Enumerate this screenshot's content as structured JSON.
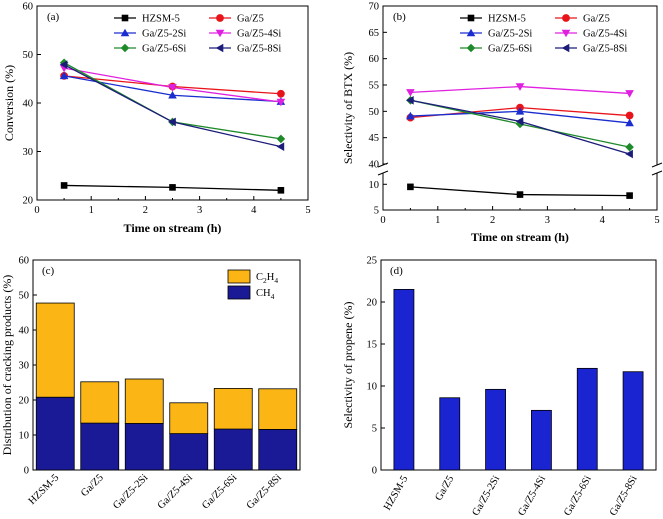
{
  "chart_data": [
    {
      "panel": "(a)",
      "type": "line",
      "xlabel": "Time on stream (h)",
      "ylabel": "Conversion (%)",
      "xlim": [
        0,
        5
      ],
      "ylim": [
        20,
        60
      ],
      "xticks": [
        "0",
        "1",
        "2",
        "3",
        "4",
        "5"
      ],
      "yticks": [
        "20",
        "30",
        "40",
        "50",
        "60"
      ],
      "x": [
        0.5,
        2.5,
        4.5
      ],
      "series": [
        {
          "name": "HZSM-5",
          "color": "#000000",
          "marker": "square",
          "values": [
            23.0,
            22.6,
            22.0
          ]
        },
        {
          "name": "Ga/Z5",
          "color": "#e8141a",
          "marker": "circle",
          "values": [
            45.6,
            43.4,
            41.9
          ]
        },
        {
          "name": "Ga/Z5-2Si",
          "color": "#1a2ecf",
          "marker": "triangle-up",
          "values": [
            45.6,
            41.6,
            40.3
          ]
        },
        {
          "name": "Ga/Z5-4Si",
          "color": "#e020e0",
          "marker": "triangle-down",
          "values": [
            47.2,
            43.2,
            40.2
          ]
        },
        {
          "name": "Ga/Z5-6Si",
          "color": "#1e8a2a",
          "marker": "diamond",
          "values": [
            48.3,
            36.1,
            32.6
          ]
        },
        {
          "name": "Ga/Z5-8Si",
          "color": "#1c1c7a",
          "marker": "triangle-left",
          "values": [
            47.9,
            36.1,
            31.0
          ]
        }
      ]
    },
    {
      "panel": "(b)",
      "type": "line",
      "xlabel": "Time on stream (h)",
      "ylabel": "Selectivity of BTX (%)",
      "xlim": [
        0,
        5
      ],
      "axis_break": "between 10 and 40",
      "ylim_lower": [
        5,
        12
      ],
      "ylim_upper": [
        40,
        70
      ],
      "xticks": [
        "0",
        "1",
        "2",
        "3",
        "4",
        "5"
      ],
      "yticks": [
        "5",
        "10",
        "40",
        "45",
        "50",
        "55",
        "60",
        "65",
        "70"
      ],
      "x": [
        0.5,
        2.5,
        4.5
      ],
      "series": [
        {
          "name": "HZSM-5",
          "color": "#000000",
          "marker": "square",
          "values": [
            9.5,
            8.0,
            7.8
          ]
        },
        {
          "name": "Ga/Z5",
          "color": "#e8141a",
          "marker": "circle",
          "values": [
            48.8,
            50.7,
            49.2
          ]
        },
        {
          "name": "Ga/Z5-2Si",
          "color": "#1a2ecf",
          "marker": "triangle-up",
          "values": [
            49.1,
            50.0,
            47.8
          ]
        },
        {
          "name": "Ga/Z5-4Si",
          "color": "#e020e0",
          "marker": "triangle-down",
          "values": [
            53.6,
            54.7,
            53.4
          ]
        },
        {
          "name": "Ga/Z5-6Si",
          "color": "#1e8a2a",
          "marker": "diamond",
          "values": [
            52.1,
            47.6,
            43.2
          ]
        },
        {
          "name": "Ga/Z5-8Si",
          "color": "#1c1c7a",
          "marker": "triangle-left",
          "values": [
            52.1,
            48.1,
            41.9
          ]
        }
      ]
    },
    {
      "panel": "(c)",
      "type": "bar",
      "stacked": true,
      "ylabel": "Distribution of cracking products (%)",
      "ylim": [
        0,
        60
      ],
      "yticks": [
        "0",
        "10",
        "20",
        "30",
        "40",
        "50",
        "60"
      ],
      "categories": [
        "HZSM-5",
        "Ga/Z5",
        "Ga/Z5-2Si",
        "Ga/Z5-4Si",
        "Ga/Z5-6Si",
        "Ga/Z5-8Si"
      ],
      "series": [
        {
          "name": "CH",
          "subscript": "4",
          "color": "#1a1a96",
          "values": [
            20.8,
            13.4,
            13.3,
            10.4,
            11.7,
            11.6
          ]
        },
        {
          "name": "C",
          "subscript": "2",
          "name_tail": "H",
          "subscript_tail": "4",
          "color": "#fbb616",
          "values": [
            26.9,
            11.8,
            12.7,
            8.8,
            11.6,
            11.6
          ]
        }
      ]
    },
    {
      "panel": "(d)",
      "type": "bar",
      "ylabel": "Selectivity of propene (%)",
      "ylim": [
        0,
        25
      ],
      "yticks": [
        "0",
        "5",
        "10",
        "15",
        "20",
        "25"
      ],
      "categories": [
        "HZSM-5",
        "Ga/Z5",
        "Ga/Z5-2Si",
        "Ga/Z5-4Si",
        "Ga/Z5-6Si",
        "Ga/Z5-8Si"
      ],
      "color": "#1a24d0",
      "values": [
        21.5,
        8.6,
        9.6,
        7.1,
        12.1,
        11.7
      ]
    }
  ]
}
